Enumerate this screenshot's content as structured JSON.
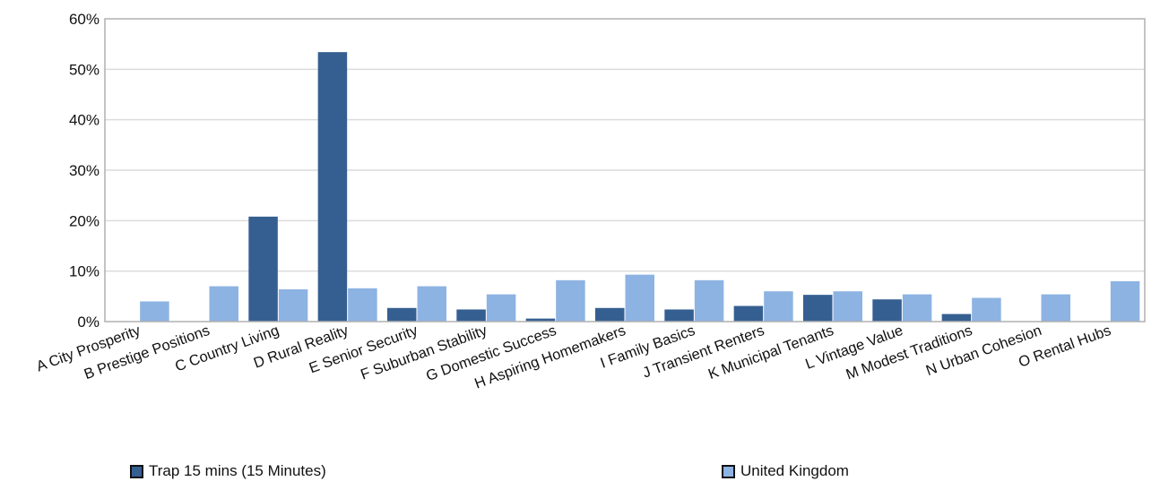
{
  "chart_data": {
    "type": "bar",
    "title": "",
    "xlabel": "",
    "ylabel": "",
    "ylim": [
      0,
      60
    ],
    "y_ticks": [
      "0%",
      "10%",
      "20%",
      "30%",
      "40%",
      "50%",
      "60%"
    ],
    "grid": "horizontal",
    "legend_placement": "bottom",
    "categories": [
      "A City Prosperity",
      "B Prestige Positions",
      "C Country Living",
      "D Rural Reality",
      "E Senior Security",
      "F Suburban Stability",
      "G Domestic Success",
      "H Aspiring Homemakers",
      "I Family Basics",
      "J Transient Renters",
      "K Municipal Tenants",
      "L Vintage Value",
      "M Modest Traditions",
      "N Urban Cohesion",
      "O Rental Hubs"
    ],
    "series": [
      {
        "name": "Trap 15 mins (15 Minutes)",
        "color": "#365f91",
        "values": [
          0,
          0,
          20.8,
          53.4,
          2.7,
          2.4,
          0.6,
          2.7,
          2.4,
          3.1,
          5.3,
          4.4,
          1.5,
          0,
          0
        ]
      },
      {
        "name": "United Kingdom",
        "color": "#8db3e2",
        "values": [
          4.0,
          7.0,
          6.4,
          6.6,
          7.0,
          5.4,
          8.2,
          9.3,
          8.2,
          6.0,
          6.0,
          5.4,
          4.7,
          5.4,
          8.0
        ]
      }
    ]
  }
}
